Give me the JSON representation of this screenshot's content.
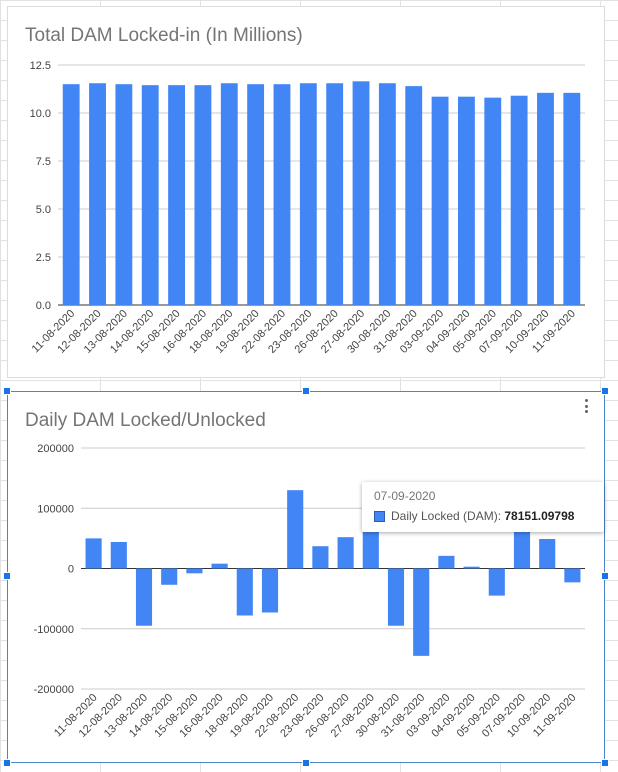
{
  "colors": {
    "bar": "#4285f4",
    "title": "#757575",
    "selection": "#1a73e8"
  },
  "chart_data": [
    {
      "type": "bar",
      "title": "Total DAM Locked-in (In Millions)",
      "categories": [
        "11-08-2020",
        "12-08-2020",
        "13-08-2020",
        "14-08-2020",
        "15-08-2020",
        "16-08-2020",
        "18-08-2020",
        "19-08-2020",
        "22-08-2020",
        "23-08-2020",
        "26-08-2020",
        "27-08-2020",
        "30-08-2020",
        "31-08-2020",
        "03-09-2020",
        "04-09-2020",
        "05-09-2020",
        "07-09-2020",
        "10-09-2020",
        "11-09-2020"
      ],
      "values": [
        11.5,
        11.55,
        11.5,
        11.45,
        11.45,
        11.45,
        11.55,
        11.5,
        11.5,
        11.55,
        11.55,
        11.65,
        11.55,
        11.4,
        10.85,
        10.85,
        10.8,
        10.9,
        11.05,
        11.05
      ],
      "yticks": [
        "0.0",
        "2.5",
        "5.0",
        "7.5",
        "10.0",
        "12.5"
      ],
      "ylim": [
        0,
        12.5
      ],
      "grid": true,
      "legend": "none"
    },
    {
      "type": "bar",
      "title": "Daily DAM Locked/Unlocked",
      "categories": [
        "11-08-2020",
        "12-08-2020",
        "13-08-2020",
        "14-08-2020",
        "15-08-2020",
        "16-08-2020",
        "18-08-2020",
        "19-08-2020",
        "22-08-2020",
        "23-08-2020",
        "26-08-2020",
        "27-08-2020",
        "30-08-2020",
        "31-08-2020",
        "03-09-2020",
        "04-09-2020",
        "05-09-2020",
        "07-09-2020",
        "10-09-2020",
        "11-09-2020"
      ],
      "values": [
        50000,
        44000,
        -95000,
        -27000,
        -8000,
        8000,
        -78000,
        -73000,
        130000,
        37000,
        52000,
        103000,
        -95000,
        -145000,
        21000,
        3000,
        -45000,
        78151.09798,
        49000,
        -23000
      ],
      "yticks": [
        "-200000",
        "-100000",
        "0",
        "100000",
        "200000"
      ],
      "ylim": [
        -200000,
        200000
      ],
      "grid": true,
      "legend": "none",
      "tooltip": {
        "date": "07-09-2020",
        "series": "Daily Locked (DAM):",
        "value": "78151.09798"
      }
    }
  ]
}
